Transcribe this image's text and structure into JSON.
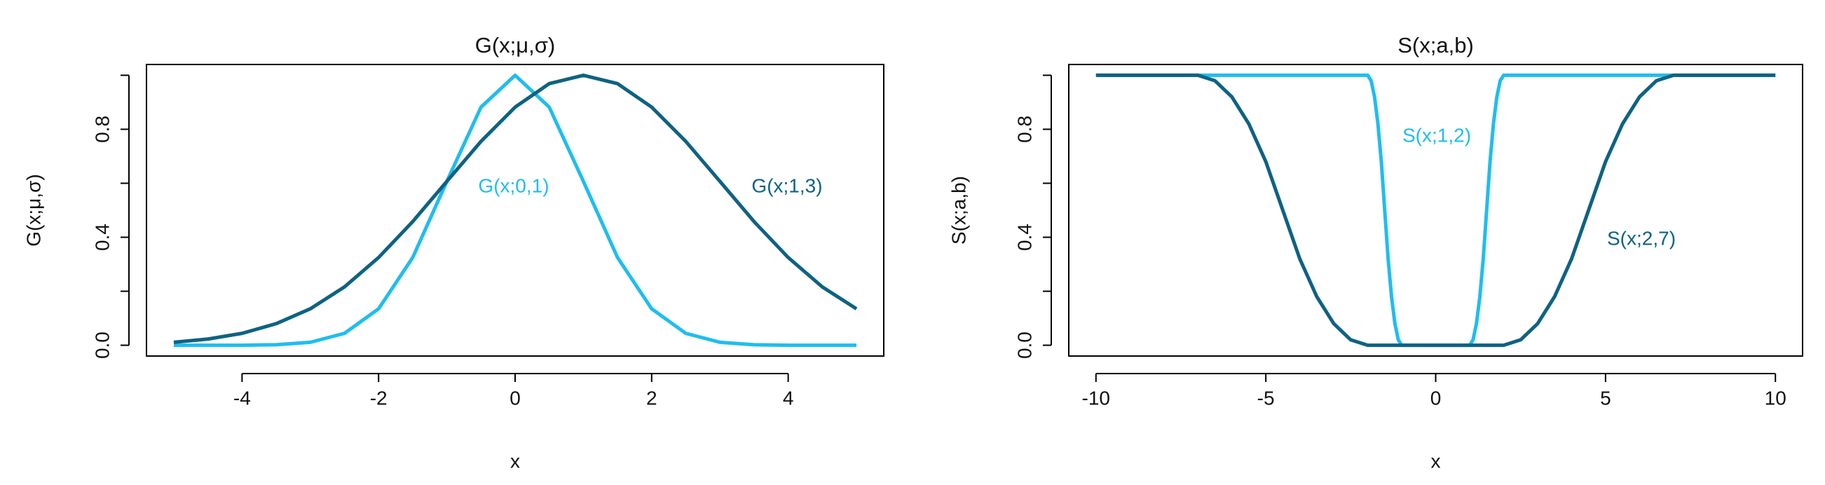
{
  "chart_data": [
    {
      "type": "line",
      "title": "G(x;μ,σ)",
      "x_label": "x",
      "y_label": "G(x;μ,σ)",
      "xlim": [
        -5,
        5
      ],
      "ylim": [
        0,
        1
      ],
      "xticks": [
        -4,
        -2,
        0,
        2,
        4
      ],
      "yticks": [
        {
          "value": 0,
          "label": "0.0"
        },
        {
          "value": 0.2,
          "label": null
        },
        0.4,
        {
          "value": 0.6,
          "label": null
        },
        0.8,
        {
          "value": 1,
          "label": null
        }
      ],
      "series": [
        {
          "name": "G(x;0,1)",
          "color": "#1fbdf0",
          "x": [
            -5,
            -4.5,
            -4,
            -3.5,
            -3,
            -2.5,
            -2,
            -1.5,
            -1,
            -0.5,
            0,
            0.5,
            1,
            1.5,
            2,
            2.5,
            3,
            3.5,
            4,
            4.5,
            5
          ],
          "values": [
            0,
            0,
            0,
            0.002,
            0.011,
            0.044,
            0.135,
            0.325,
            0.607,
            0.882,
            1,
            0.882,
            0.607,
            0.325,
            0.135,
            0.044,
            0.011,
            0.002,
            0,
            0,
            0
          ]
        },
        {
          "name": "G(x;1,3)",
          "color": "#0e6283",
          "x": [
            -5,
            -4.5,
            -4,
            -3.5,
            -3,
            -2.5,
            -2,
            -1.5,
            -1,
            -0.5,
            0,
            0.5,
            1,
            1.5,
            2,
            2.5,
            3,
            3.5,
            4,
            4.5,
            5
          ],
          "values": [
            0.011,
            0.023,
            0.044,
            0.08,
            0.135,
            0.216,
            0.325,
            0.458,
            0.607,
            0.755,
            0.882,
            0.969,
            1,
            0.969,
            0.882,
            0.755,
            0.607,
            0.458,
            0.325,
            0.216,
            0.135
          ]
        }
      ]
    },
    {
      "type": "line",
      "title": "S(x;a,b)",
      "x_label": "x",
      "y_label": "S(x;a,b)",
      "xlim": [
        -10,
        10
      ],
      "ylim": [
        0,
        1
      ],
      "xticks": [
        -10,
        -5,
        0,
        5,
        10
      ],
      "yticks": [
        {
          "value": 0,
          "label": "0.0"
        },
        {
          "value": 0.2,
          "label": null
        },
        0.4,
        {
          "value": 0.6,
          "label": null
        },
        0.8,
        {
          "value": 1,
          "label": null
        }
      ],
      "series": [
        {
          "name": "S(x;1,2)",
          "color": "#1fbdf0",
          "x": [
            -10,
            -2,
            -1.9,
            -1.8,
            -1.7,
            -1.6,
            -1.5,
            -1.4,
            -1.3,
            -1.2,
            -1.1,
            -1,
            1,
            1.1,
            1.2,
            1.3,
            1.4,
            1.5,
            1.6,
            1.7,
            1.8,
            1.9,
            2,
            10
          ],
          "values": [
            1,
            1,
            0.98,
            0.92,
            0.82,
            0.68,
            0.5,
            0.32,
            0.18,
            0.08,
            0.02,
            0,
            0,
            0.02,
            0.08,
            0.18,
            0.32,
            0.5,
            0.68,
            0.82,
            0.92,
            0.98,
            1,
            1
          ]
        },
        {
          "name": "S(x;2,7)",
          "color": "#0e6283",
          "x": [
            -10,
            -9.5,
            -9,
            -8.5,
            -8,
            -7.5,
            -7,
            -6.5,
            -6,
            -5.5,
            -5,
            -4.5,
            -4,
            -3.5,
            -3,
            -2.5,
            -2,
            -1.5,
            -1,
            -0.5,
            0,
            0.5,
            1,
            1.5,
            2,
            2.5,
            3,
            3.5,
            4,
            4.5,
            5,
            5.5,
            6,
            6.5,
            7,
            7.5,
            8,
            8.5,
            9,
            9.5,
            10
          ],
          "values": [
            1,
            1,
            1,
            1,
            1,
            1,
            1,
            0.98,
            0.92,
            0.82,
            0.68,
            0.5,
            0.32,
            0.18,
            0.08,
            0.02,
            0,
            0,
            0,
            0,
            0,
            0,
            0,
            0,
            0,
            0.02,
            0.08,
            0.18,
            0.32,
            0.5,
            0.68,
            0.82,
            0.92,
            0.98,
            1,
            1,
            1,
            1,
            1,
            1,
            1
          ]
        }
      ]
    }
  ]
}
